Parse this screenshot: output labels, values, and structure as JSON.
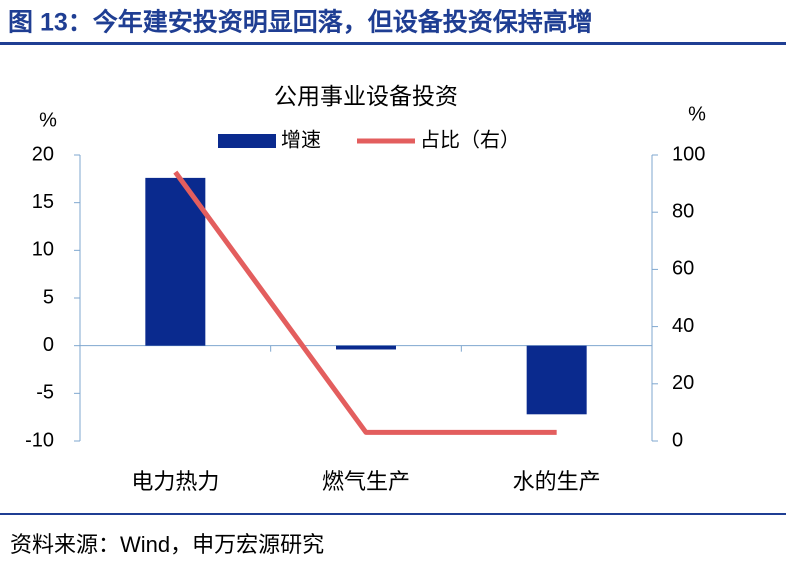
{
  "header": {
    "title": "图 13：今年建安投资明显回落，但设备投资保持高增"
  },
  "chart_data": {
    "type": "bar",
    "title": "公用事业设备投资",
    "y_label": "%",
    "y2_label": "%",
    "categories": [
      "电力热力",
      "燃气生产",
      "水的生产"
    ],
    "series": [
      {
        "name": "增速",
        "type": "bar",
        "color": "#0a2a8e",
        "values": [
          17.6,
          -0.4,
          -7.2
        ]
      },
      {
        "name": "占比（右）",
        "type": "line",
        "axis": "y2",
        "color": "#e35e5e",
        "values": [
          94,
          3,
          3
        ]
      }
    ],
    "ylim": [
      -10,
      20
    ],
    "yticks": [
      -10,
      -5,
      0,
      5,
      10,
      15,
      20
    ],
    "y2lim": [
      0,
      100
    ],
    "y2ticks": [
      0,
      20,
      40,
      60,
      80,
      100
    ]
  },
  "source": "资料来源：Wind，申万宏源研究"
}
